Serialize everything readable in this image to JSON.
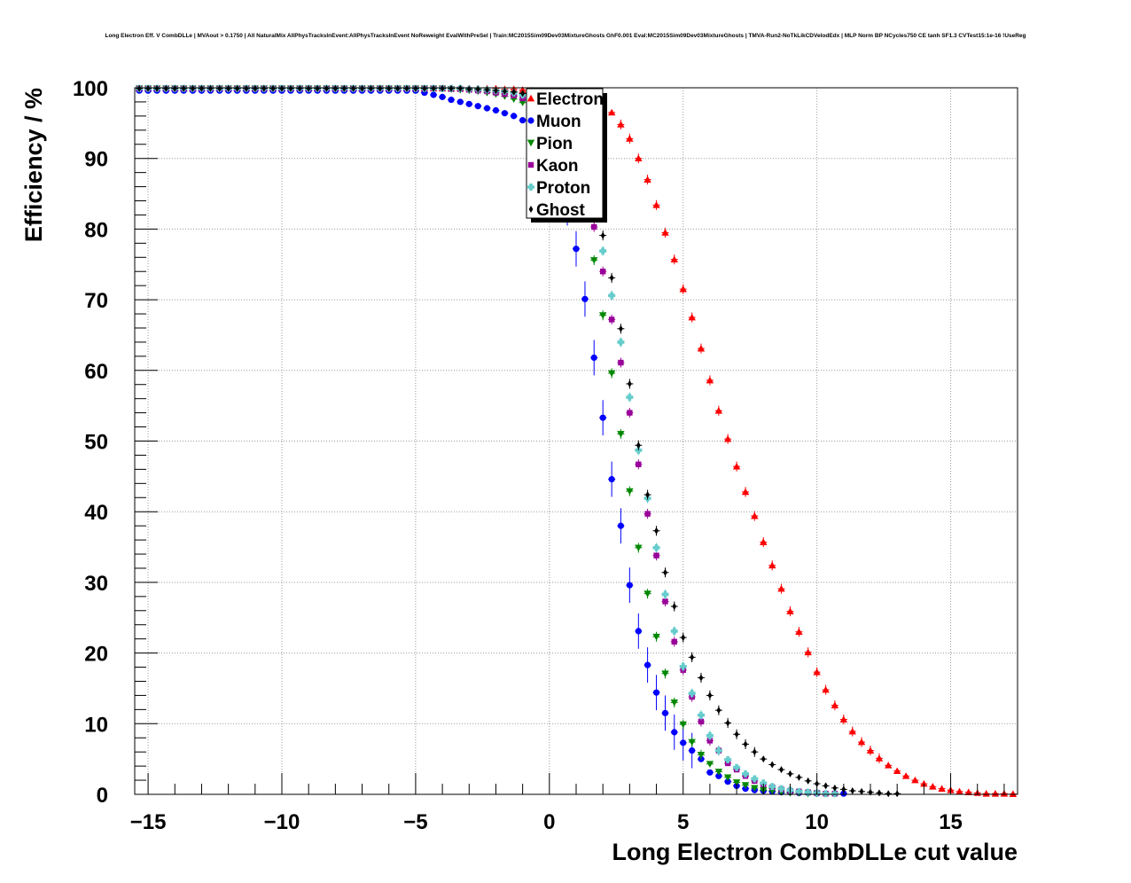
{
  "page_title": "Long Electron Eff. V CombDLLe | MVAout > 0.1750 | All NaturalMix AllPhysTracksInEvent:AllPhysTracksInEvent NoReweight EvalWithPreSel | Train:MC2015Sim09Dev03MixtureGhosts GhF0.001 Eval:MC2015Sim09Dev03MixtureGhosts | TMVA-Run2-NoTkLikCDVelodEdx | MLP Norm BP NCycles750 CE tanh SF1.3 CVTest15:1e-16 !UseReg",
  "chart_data": {
    "type": "scatter",
    "title": "Long Electron Eff. V CombDLLe | MVAout > 0.1750 | All NaturalMix AllPhysTracksInEvent:AllPhysTracksInEvent NoReweight EvalWithPreSel | Train:MC2015Sim09Dev03MixtureGhosts GhF0.001 Eval:MC2015Sim09Dev03MixtureGhosts | TMVA-Run2-NoTkLikCDVelodEdx | MLP Norm BP NCycles750 CE tanh SF1.3 CVTest15:1e-16 !UseReg",
    "xlabel": "Long Electron CombDLLe cut value",
    "ylabel": "Efficiency / %",
    "xlim": [
      -15.5,
      17.5
    ],
    "ylim": [
      0,
      100
    ],
    "x_ticks": [
      -15,
      -10,
      -5,
      0,
      5,
      10,
      15
    ],
    "x_tick_labels": [
      "−15",
      "−10",
      "−5",
      "0",
      "5",
      "10",
      "15"
    ],
    "y_ticks": [
      0,
      10,
      20,
      30,
      40,
      50,
      60,
      70,
      80,
      90,
      100
    ],
    "y_tick_labels": [
      "0",
      "10",
      "20",
      "30",
      "40",
      "50",
      "60",
      "70",
      "80",
      "90",
      "100"
    ],
    "grid": true,
    "legend_position": "top-center",
    "x": [
      -15.33,
      -15.0,
      -14.67,
      -14.33,
      -14.0,
      -13.67,
      -13.33,
      -13.0,
      -12.67,
      -12.33,
      -12.0,
      -11.67,
      -11.33,
      -11.0,
      -10.67,
      -10.33,
      -10.0,
      -9.67,
      -9.33,
      -9.0,
      -8.67,
      -8.33,
      -8.0,
      -7.67,
      -7.33,
      -7.0,
      -6.67,
      -6.33,
      -6.0,
      -5.67,
      -5.33,
      -5.0,
      -4.67,
      -4.33,
      -4.0,
      -3.67,
      -3.33,
      -3.0,
      -2.67,
      -2.33,
      -2.0,
      -1.67,
      -1.33,
      -1.0,
      -0.67,
      -0.33,
      0.0,
      0.33,
      0.67,
      1.0,
      1.33,
      1.67,
      2.0,
      2.33,
      2.67,
      3.0,
      3.33,
      3.67,
      4.0,
      4.33,
      4.67,
      5.0,
      5.33,
      5.67,
      6.0,
      6.33,
      6.67,
      7.0,
      7.33,
      7.67,
      8.0,
      8.33,
      8.67,
      9.0,
      9.33,
      9.67,
      10.0,
      10.33,
      10.67,
      11.0,
      11.33,
      11.67,
      12.0,
      12.33,
      12.67,
      13.0,
      13.33,
      13.67,
      14.0,
      14.33,
      14.67,
      15.0,
      15.33,
      15.67,
      16.0,
      16.33,
      16.67,
      17.0,
      17.33
    ],
    "series": [
      {
        "name": "Electron",
        "marker": "triangle-up",
        "color": "#ff0000",
        "values": [
          99.9,
          99.9,
          99.9,
          99.9,
          99.9,
          99.9,
          99.9,
          99.9,
          99.9,
          99.9,
          99.9,
          99.9,
          99.9,
          99.9,
          99.9,
          99.9,
          99.9,
          99.9,
          99.9,
          99.9,
          99.9,
          99.9,
          99.9,
          99.9,
          99.9,
          99.9,
          99.9,
          99.9,
          99.9,
          99.9,
          99.9,
          99.9,
          99.9,
          99.9,
          99.9,
          99.9,
          99.9,
          99.9,
          99.9,
          99.9,
          99.9,
          99.8,
          99.8,
          99.7,
          99.6,
          99.5,
          99.4,
          99.3,
          99.1,
          98.9,
          98.6,
          98.2,
          97.7,
          96.5,
          94.8,
          92.8,
          90.0,
          87.0,
          83.4,
          79.5,
          75.7,
          71.5,
          67.5,
          63.1,
          58.6,
          54.3,
          50.3,
          46.4,
          42.8,
          39.4,
          35.7,
          32.4,
          29.1,
          25.9,
          23.0,
          20.1,
          17.3,
          14.8,
          12.6,
          10.6,
          8.9,
          7.4,
          6.2,
          5.1,
          4.1,
          3.3,
          2.6,
          2.0,
          1.5,
          1.1,
          0.8,
          0.6,
          0.4,
          0.3,
          0.2,
          0.1,
          0.1,
          0.1,
          0.05
        ]
      },
      {
        "name": "Muon",
        "marker": "circle",
        "color": "#0000ff",
        "values": [
          99.6,
          99.6,
          99.6,
          99.6,
          99.6,
          99.6,
          99.6,
          99.6,
          99.6,
          99.6,
          99.6,
          99.6,
          99.6,
          99.6,
          99.6,
          99.6,
          99.6,
          99.6,
          99.6,
          99.6,
          99.6,
          99.6,
          99.6,
          99.6,
          99.6,
          99.6,
          99.6,
          99.6,
          99.6,
          99.6,
          99.6,
          99.6,
          99.3,
          99.0,
          98.7,
          98.3,
          98.0,
          97.7,
          97.4,
          97.1,
          96.8,
          96.4,
          96.0,
          95.4,
          94.5,
          92.6,
          89.8,
          86.4,
          83.0,
          77.2,
          70.1,
          61.8,
          53.3,
          44.6,
          38.0,
          29.6,
          23.1,
          18.3,
          14.4,
          11.5,
          8.8,
          7.3,
          6.2,
          5.0,
          3.1,
          2.6,
          1.8,
          1.2,
          0.8,
          0.6,
          0.5,
          0.4,
          0.3,
          0.3,
          0.2,
          0.2,
          0.1,
          0.1,
          0.1,
          0.1
        ]
      },
      {
        "name": "Pion",
        "marker": "triangle-down",
        "color": "#008800",
        "values": [
          99.9,
          99.9,
          99.9,
          99.9,
          99.9,
          99.9,
          99.9,
          99.9,
          99.9,
          99.9,
          99.9,
          99.9,
          99.9,
          99.9,
          99.9,
          99.9,
          99.9,
          99.9,
          99.9,
          99.9,
          99.9,
          99.9,
          99.9,
          99.9,
          99.9,
          99.9,
          99.9,
          99.9,
          99.9,
          99.9,
          99.9,
          99.9,
          99.9,
          99.9,
          99.9,
          99.8,
          99.7,
          99.6,
          99.5,
          99.3,
          99.1,
          98.8,
          98.4,
          97.9,
          97.2,
          96.2,
          94.8,
          92.8,
          90.1,
          86.5,
          81.8,
          75.6,
          67.8,
          59.6,
          51.0,
          42.9,
          34.9,
          28.4,
          22.3,
          17.1,
          13.0,
          9.9,
          7.4,
          5.6,
          4.3,
          3.2,
          2.4,
          1.7,
          1.3,
          0.9,
          0.6,
          0.5,
          0.3,
          0.2,
          0.2,
          0.1,
          0.1
        ]
      },
      {
        "name": "Kaon",
        "marker": "square",
        "color": "#990099",
        "values": [
          99.9,
          99.9,
          99.9,
          99.9,
          99.9,
          99.9,
          99.9,
          99.9,
          99.9,
          99.9,
          99.9,
          99.9,
          99.9,
          99.9,
          99.9,
          99.9,
          99.9,
          99.9,
          99.9,
          99.9,
          99.9,
          99.9,
          99.9,
          99.9,
          99.9,
          99.9,
          99.9,
          99.9,
          99.9,
          99.9,
          99.9,
          99.9,
          99.9,
          99.9,
          99.9,
          99.8,
          99.8,
          99.7,
          99.6,
          99.5,
          99.3,
          99.1,
          98.9,
          98.5,
          98.0,
          97.3,
          96.4,
          95.1,
          93.2,
          90.7,
          86.0,
          80.3,
          74.0,
          67.2,
          61.1,
          54.0,
          46.7,
          39.7,
          33.8,
          27.3,
          21.6,
          17.6,
          13.8,
          10.3,
          7.6,
          6.2,
          4.4,
          3.5,
          2.6,
          1.9,
          1.4,
          1.0,
          0.7,
          0.5,
          0.4,
          0.3,
          0.2,
          0.1,
          0.1
        ]
      },
      {
        "name": "Proton",
        "marker": "cross",
        "color": "#66cccc",
        "values": [
          99.9,
          99.9,
          99.9,
          99.9,
          99.9,
          99.9,
          99.9,
          99.9,
          99.9,
          99.9,
          99.9,
          99.9,
          99.9,
          99.9,
          99.9,
          99.9,
          99.9,
          99.9,
          99.9,
          99.9,
          99.9,
          99.9,
          99.9,
          99.9,
          99.9,
          99.9,
          99.9,
          99.9,
          99.9,
          99.9,
          99.9,
          99.9,
          99.9,
          99.9,
          99.9,
          99.9,
          99.9,
          99.8,
          99.8,
          99.7,
          99.6,
          99.5,
          99.3,
          99.0,
          98.6,
          97.9,
          97.0,
          95.6,
          93.5,
          89.7,
          86.7,
          82.4,
          76.9,
          70.6,
          64.0,
          56.2,
          48.7,
          41.9,
          34.9,
          28.3,
          23.1,
          18.1,
          14.3,
          11.2,
          8.3,
          6.2,
          4.9,
          3.8,
          2.9,
          2.2,
          1.6,
          1.1,
          0.8,
          0.6,
          0.4,
          0.3,
          0.2,
          0.1,
          0.1
        ]
      },
      {
        "name": "Ghost",
        "marker": "diamond",
        "color": "#000000",
        "values": [
          99.9,
          99.9,
          99.9,
          99.9,
          99.9,
          99.9,
          99.9,
          99.9,
          99.9,
          99.9,
          99.9,
          99.9,
          99.9,
          99.9,
          99.9,
          99.9,
          99.9,
          99.9,
          99.9,
          99.9,
          99.9,
          99.9,
          99.9,
          99.9,
          99.9,
          99.9,
          99.9,
          99.9,
          99.9,
          99.9,
          99.9,
          99.9,
          99.9,
          99.9,
          99.9,
          99.9,
          99.9,
          99.8,
          99.8,
          99.7,
          99.6,
          99.5,
          99.4,
          99.2,
          98.9,
          98.4,
          97.7,
          96.5,
          94.5,
          91.3,
          87.9,
          85.0,
          79.1,
          73.1,
          65.9,
          58.1,
          49.4,
          42.4,
          37.3,
          31.4,
          26.6,
          22.2,
          19.4,
          16.5,
          14.0,
          11.9,
          10.1,
          8.5,
          7.1,
          6.0,
          5.0,
          4.2,
          3.5,
          2.9,
          2.4,
          1.9,
          1.5,
          1.2,
          0.9,
          0.7,
          0.5,
          0.4,
          0.3,
          0.2,
          0.1,
          0.1
        ]
      }
    ]
  }
}
